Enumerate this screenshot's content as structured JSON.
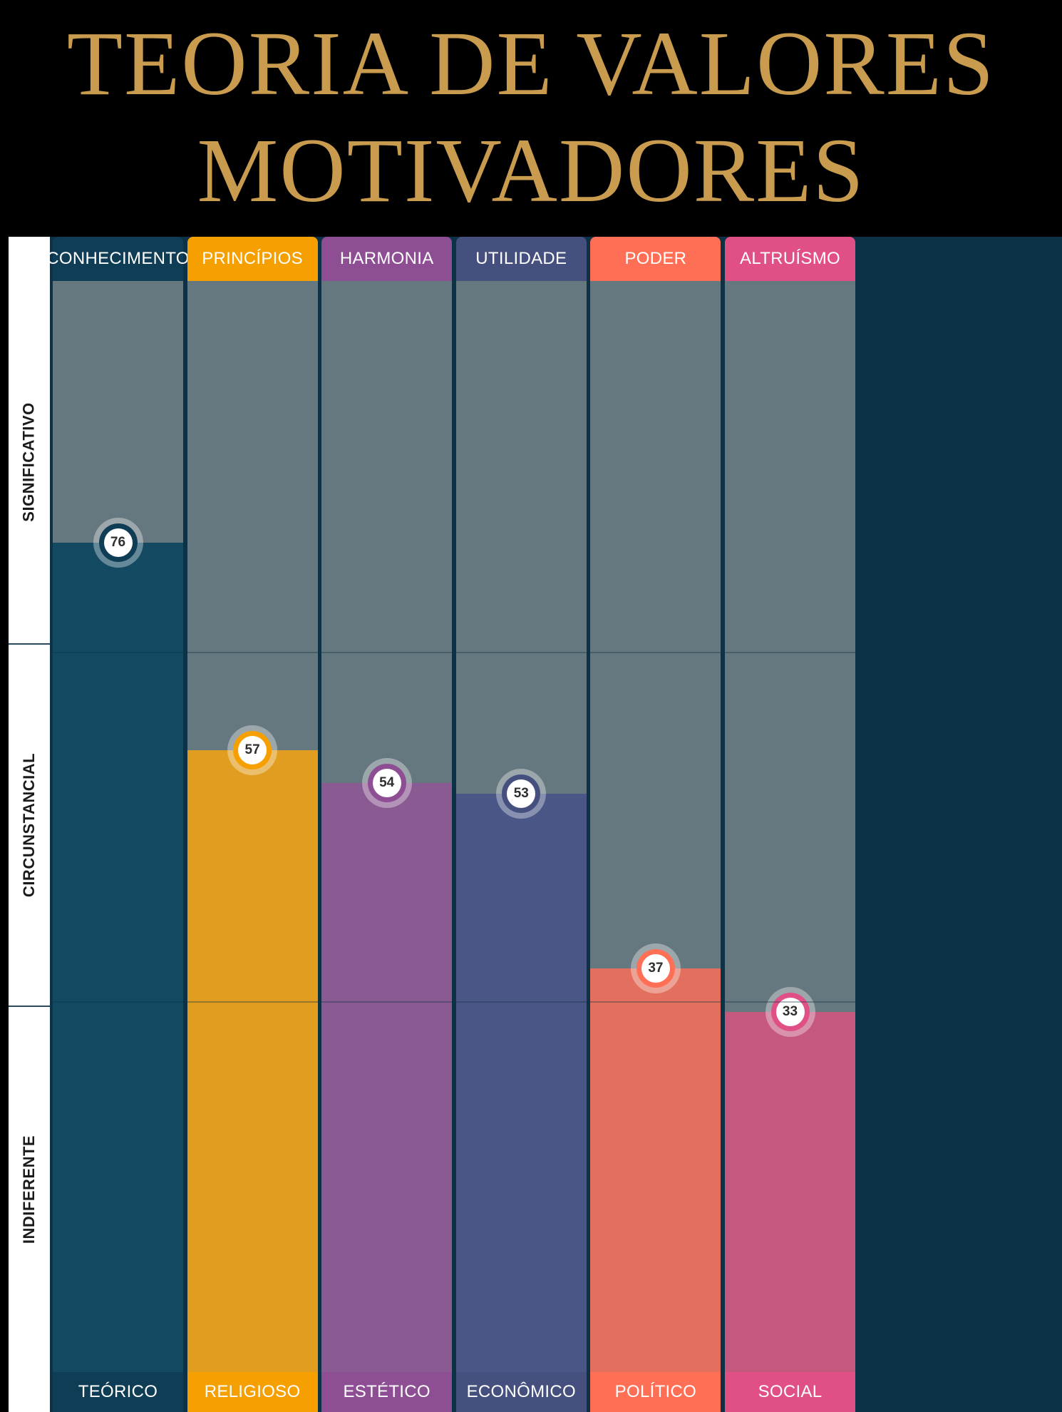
{
  "title": {
    "line1": "TEORIA DE VALORES",
    "line2": "MOTIVADORES"
  },
  "zones": {
    "significativo": "SIGNIFICATIVO",
    "circunstancial": "CIRCUNSTANCIAL",
    "indiferente": "INDIFERENTE"
  },
  "colors": {
    "title_gold": "#C89B4E",
    "background": "#000000",
    "unfilled": "#66787F"
  },
  "chart_data": {
    "type": "bar",
    "ylim": [
      0,
      100
    ],
    "bands": [
      {
        "label": "INDIFERENTE",
        "range": [
          0,
          34
        ]
      },
      {
        "label": "CIRCUNSTANCIAL",
        "range": [
          34,
          66
        ]
      },
      {
        "label": "SIGNIFICATIVO",
        "range": [
          66,
          100
        ]
      }
    ],
    "categories": [
      "CONHECIMENTO",
      "PRINCÍPIOS",
      "HARMONIA",
      "UTILIDADE",
      "PODER",
      "ALTRUÍSMO"
    ],
    "subcategories": [
      "TEÓRICO",
      "RELIGIOSO",
      "ESTÉTICO",
      "ECONÔMICO",
      "POLÍTICO",
      "SOCIAL"
    ],
    "values": [
      76,
      57,
      54,
      53,
      37,
      33
    ],
    "value_labels": [
      "76",
      "57",
      "54",
      "53",
      "37",
      "33"
    ],
    "colors": {
      "header": [
        "#0F3D55",
        "#F5A000",
        "#8E4E93",
        "#45507F",
        "#FF6F55",
        "#E04F86"
      ],
      "fill": [
        "#134A62",
        "#E09D1F",
        "#8A5A93",
        "#4A5786",
        "#E3705E",
        "#C5587F"
      ]
    }
  }
}
